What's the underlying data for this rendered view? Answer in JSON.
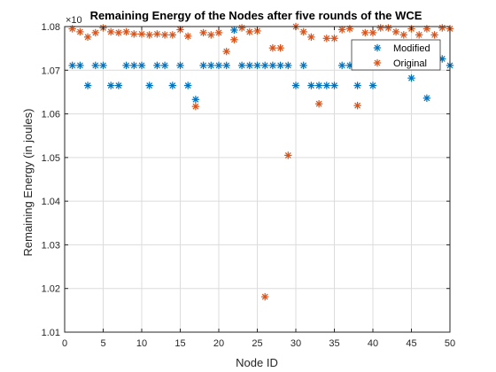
{
  "chart_data": {
    "type": "scatter",
    "title": "Remaining Energy of the Nodes after five rounds of the WCE",
    "xlabel": "Node ID",
    "ylabel": "Remaining Energy (in joules)",
    "exponent_label": "×10",
    "xlim": [
      0,
      50
    ],
    "ylim": [
      1.01,
      1.08
    ],
    "xticks": [
      "0",
      "5",
      "10",
      "15",
      "20",
      "25",
      "30",
      "35",
      "40",
      "45",
      "50"
    ],
    "yticks": [
      "1.01",
      "1.02",
      "1.03",
      "1.04",
      "1.05",
      "1.06",
      "1.07",
      "1.08"
    ],
    "grid": true,
    "legend_position": "top-right",
    "marker": "asterisk",
    "series": [
      {
        "name": "Modified",
        "color": "#0072BD",
        "x": [
          1,
          2,
          3,
          4,
          5,
          6,
          7,
          8,
          9,
          10,
          11,
          12,
          13,
          14,
          15,
          16,
          17,
          18,
          19,
          20,
          21,
          22,
          23,
          24,
          25,
          26,
          27,
          28,
          29,
          30,
          31,
          32,
          33,
          34,
          35,
          36,
          37,
          38,
          39,
          40,
          41,
          42,
          43,
          44,
          45,
          46,
          47,
          48,
          49,
          50
        ],
        "y": [
          1.0711,
          1.0711,
          1.0665,
          1.0711,
          1.0711,
          1.0665,
          1.0665,
          1.0711,
          1.0711,
          1.0711,
          1.0665,
          1.0711,
          1.0711,
          1.0665,
          1.0711,
          1.0665,
          1.0633,
          1.0711,
          1.0711,
          1.0711,
          1.0711,
          1.0792,
          1.0711,
          1.0711,
          1.0711,
          1.0711,
          1.0711,
          1.0711,
          1.0711,
          1.0665,
          1.0711,
          1.0665,
          1.0665,
          1.0665,
          1.0665,
          1.0711,
          1.0711,
          1.0665,
          1.0711,
          1.0665,
          1.0711,
          1.0711,
          1.0711,
          1.0711,
          1.0682,
          1.0711,
          1.0636,
          1.0711,
          1.0726,
          1.0711
        ]
      },
      {
        "name": "Original",
        "color": "#D95319",
        "x": [
          1,
          2,
          3,
          4,
          5,
          6,
          7,
          8,
          9,
          10,
          11,
          12,
          13,
          14,
          15,
          16,
          17,
          18,
          19,
          20,
          21,
          22,
          23,
          24,
          25,
          26,
          27,
          28,
          29,
          30,
          31,
          32,
          33,
          34,
          35,
          36,
          37,
          38,
          39,
          40,
          41,
          42,
          43,
          44,
          45,
          46,
          47,
          48,
          49,
          50
        ],
        "y": [
          1.0795,
          1.0788,
          1.0776,
          1.0786,
          1.0797,
          1.0788,
          1.0786,
          1.0788,
          1.0783,
          1.0783,
          1.0781,
          1.0783,
          1.0781,
          1.0781,
          1.0793,
          1.0778,
          1.0617,
          1.0786,
          1.0781,
          1.0786,
          1.0743,
          1.077,
          1.0797,
          1.0788,
          1.079,
          1.0181,
          1.0751,
          1.0751,
          1.0505,
          1.08,
          1.0788,
          1.0776,
          1.0623,
          1.0773,
          1.0773,
          1.0793,
          1.0795,
          1.0619,
          1.0786,
          1.0786,
          1.0797,
          1.0797,
          1.0788,
          1.0781,
          1.0795,
          1.0781,
          1.0795,
          1.0781,
          1.0797,
          1.0795
        ]
      }
    ]
  }
}
